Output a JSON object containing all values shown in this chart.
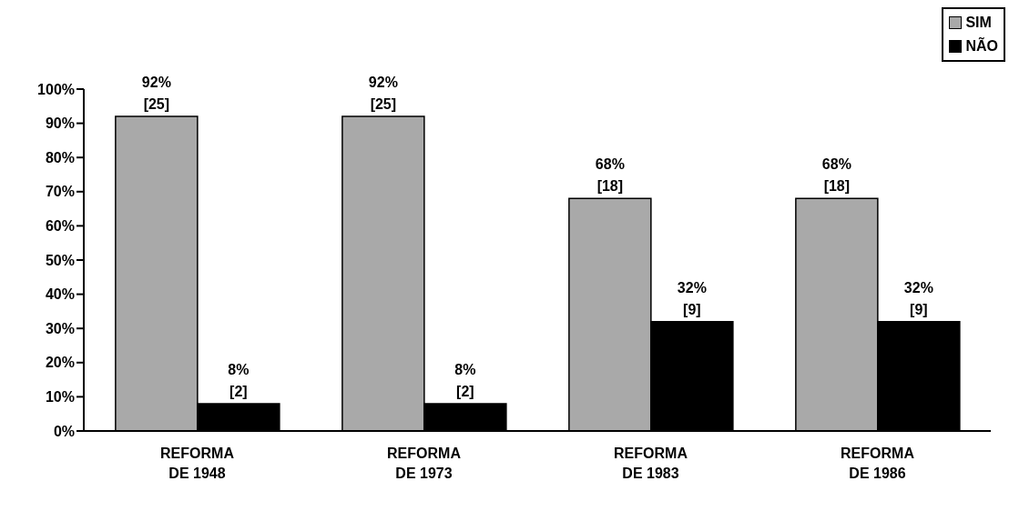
{
  "chart_data": {
    "type": "bar",
    "categories": [
      "REFORMA\nDE 1948",
      "REFORMA\nDE 1973",
      "REFORMA\nDE 1983",
      "REFORMA\nDE 1986"
    ],
    "series": [
      {
        "name": "SIM",
        "color": "#a9a9a9",
        "values": [
          92,
          92,
          68,
          68
        ],
        "value_labels": [
          "92%\n[25]",
          "92%\n[25]",
          "68%\n[18]",
          "68%\n[18]"
        ]
      },
      {
        "name": "NÃO",
        "color": "#000000",
        "values": [
          8,
          8,
          32,
          32
        ],
        "value_labels": [
          "8%\n[2]",
          "8%\n[2]",
          "32%\n[9]",
          "32%\n[9]"
        ]
      }
    ],
    "ylim": [
      0,
      100
    ],
    "yticks": [
      {
        "value": 0,
        "label": "0%"
      },
      {
        "value": 10,
        "label": "10%"
      },
      {
        "value": 20,
        "label": "20%"
      },
      {
        "value": 30,
        "label": "30%"
      },
      {
        "value": 40,
        "label": "40%"
      },
      {
        "value": 50,
        "label": "50%"
      },
      {
        "value": 60,
        "label": "60%"
      },
      {
        "value": 70,
        "label": "70%"
      },
      {
        "value": 80,
        "label": "80%"
      },
      {
        "value": 90,
        "label": "90%"
      },
      {
        "value": 100,
        "label": "100%"
      }
    ],
    "grid": false,
    "legend": "top right"
  }
}
